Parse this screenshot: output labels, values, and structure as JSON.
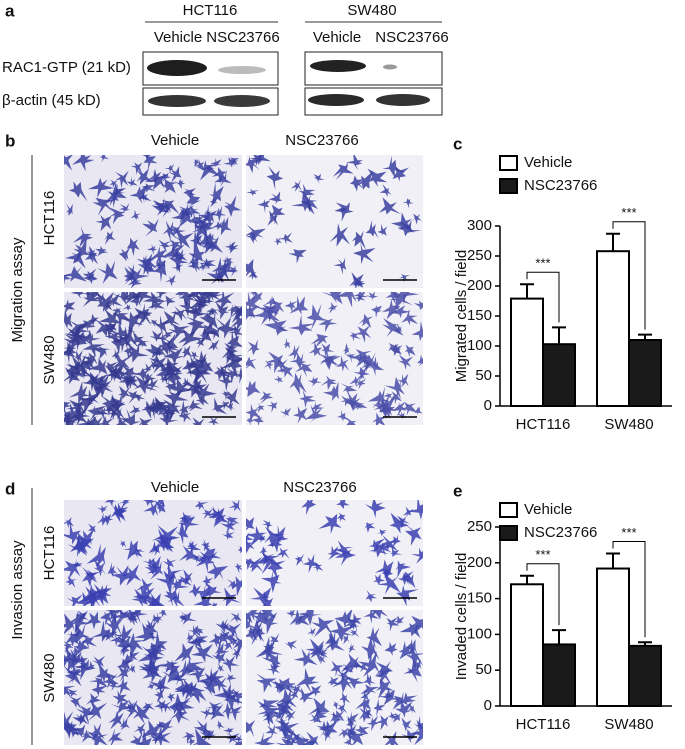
{
  "panel_labels": [
    "a",
    "b",
    "c",
    "d",
    "e"
  ],
  "blot": {
    "cell_lines": [
      "HCT116",
      "SW480"
    ],
    "conditions": [
      [
        "Vehicle",
        "NSC23766"
      ],
      [
        "Vehicle",
        "NSC23766"
      ]
    ],
    "rows": [
      "RAC1-GTP (21 kD)",
      "β-actin (45 kD)"
    ]
  },
  "migration": {
    "title": "Migration assay",
    "columns": [
      "Vehicle",
      "NSC23766"
    ],
    "rows": [
      "HCT116",
      "SW480"
    ]
  },
  "invasion": {
    "title": "Invasion assay",
    "columns": [
      "Vehicle",
      "NSC23766"
    ],
    "rows": [
      "HCT116",
      "SW480"
    ]
  },
  "chart_data": [
    {
      "type": "bar",
      "categories": [
        "HCT116",
        "SW480"
      ],
      "series": [
        {
          "name": "Vehicle",
          "color": "#ffffff",
          "values": [
            179,
            258
          ],
          "errors": [
            24,
            29
          ]
        },
        {
          "name": "NSC23766",
          "color": "#1a1a1a",
          "values": [
            103,
            110
          ],
          "errors": [
            28,
            9
          ]
        }
      ],
      "y_label": "Migrated  cells / field",
      "ylim": [
        0,
        300
      ],
      "yticks": [
        0,
        50,
        100,
        150,
        200,
        250,
        300
      ],
      "annotations": [
        "***",
        "***"
      ]
    },
    {
      "type": "bar",
      "categories": [
        "HCT116",
        "SW480"
      ],
      "series": [
        {
          "name": "Vehicle",
          "color": "#ffffff",
          "values": [
            170,
            192
          ],
          "errors": [
            12,
            21
          ]
        },
        {
          "name": "NSC23766",
          "color": "#1a1a1a",
          "values": [
            86,
            84
          ],
          "errors": [
            20,
            5
          ]
        }
      ],
      "y_label": "Invaded cells / field",
      "ylim": [
        0,
        250
      ],
      "yticks": [
        0,
        50,
        100,
        150,
        200,
        250
      ],
      "annotations": [
        "***",
        "***"
      ]
    }
  ]
}
